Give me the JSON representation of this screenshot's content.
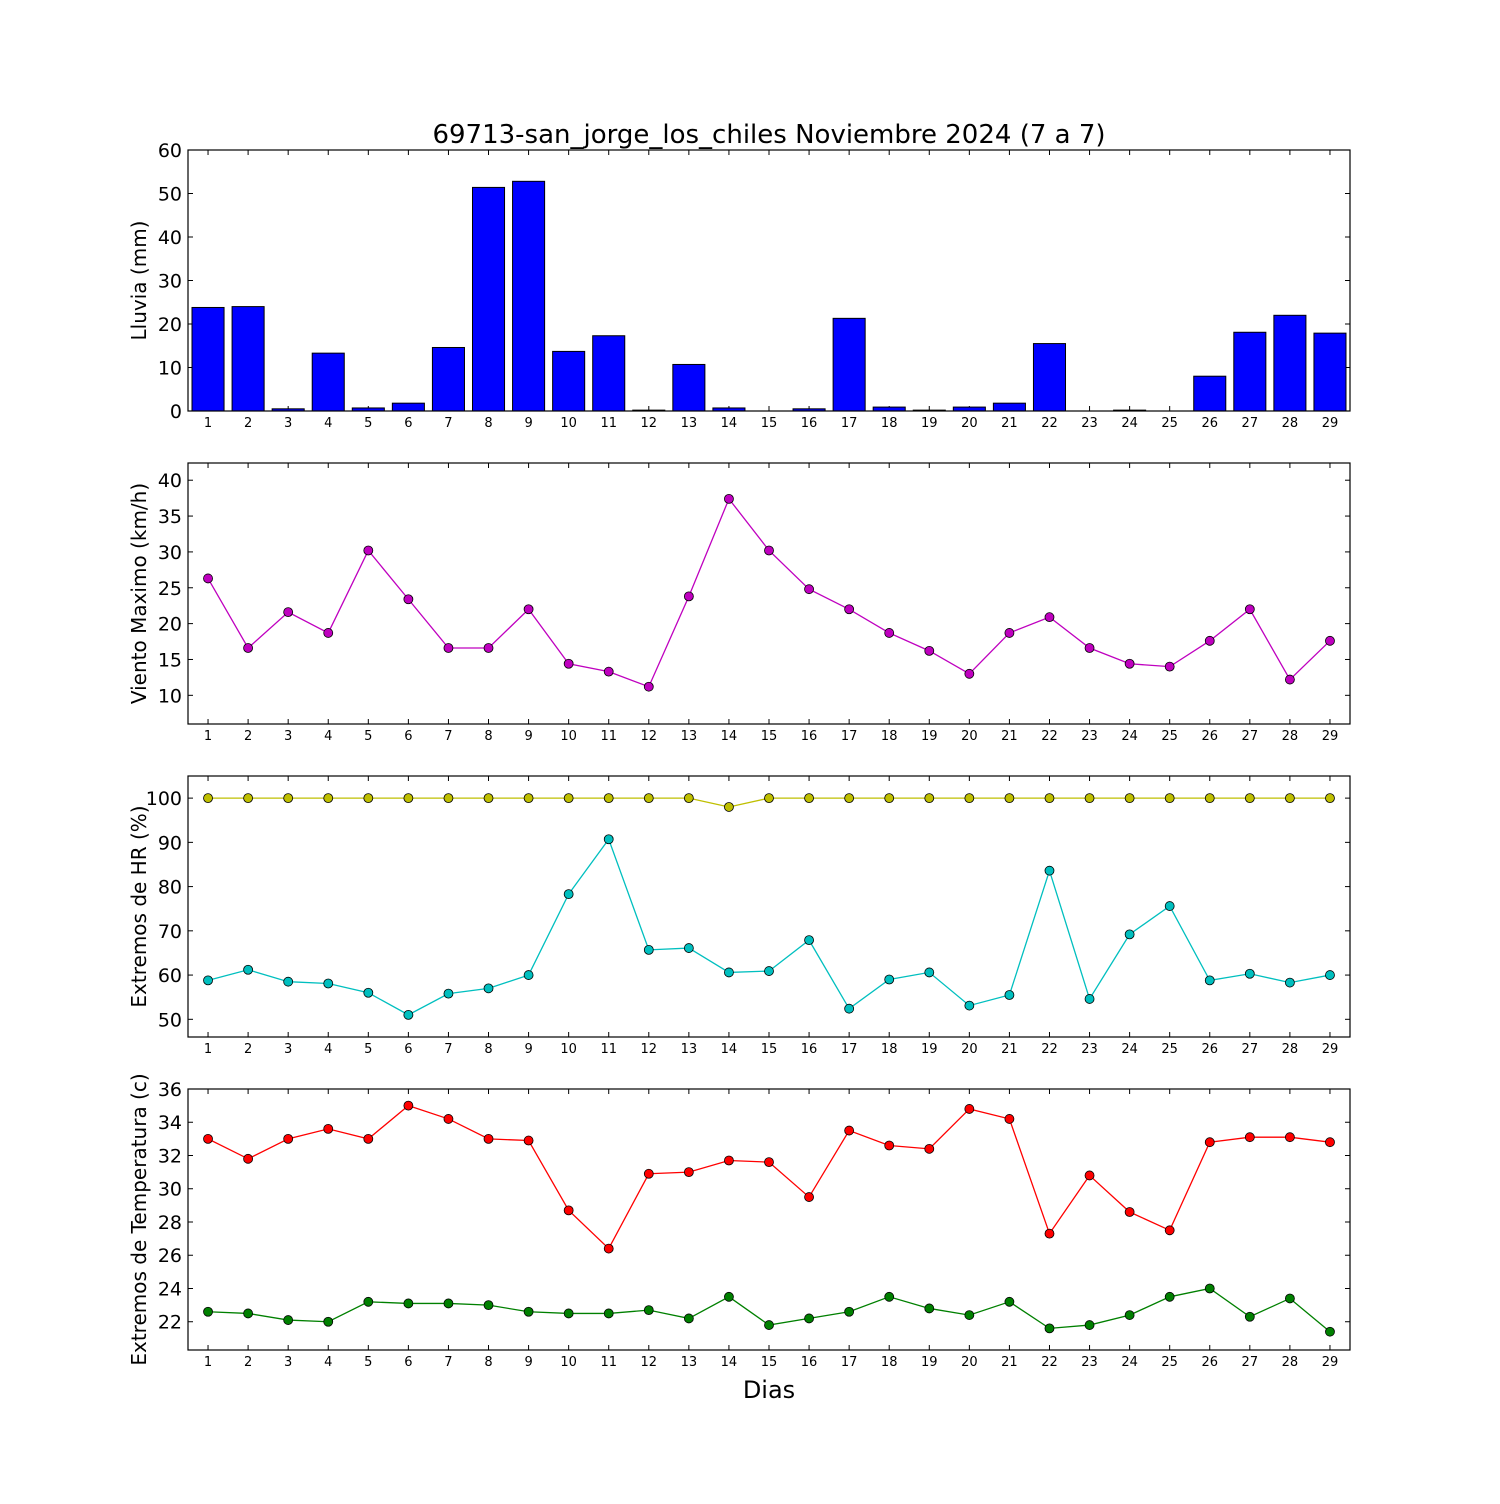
{
  "title": "69713-san_jorge_los_chiles Noviembre 2024  (7 a 7)",
  "xlabel": "Dias",
  "chart_data": [
    {
      "type": "bar",
      "ylabel": "Lluvia (mm)",
      "ylim": [
        0,
        60
      ],
      "yticks": [
        0,
        10,
        20,
        30,
        40,
        50,
        60
      ],
      "categories": [
        "1",
        "2",
        "3",
        "4",
        "5",
        "6",
        "7",
        "8",
        "9",
        "10",
        "11",
        "12",
        "13",
        "14",
        "15",
        "16",
        "17",
        "18",
        "19",
        "20",
        "21",
        "22",
        "23",
        "24",
        "25",
        "26",
        "27",
        "28",
        "29"
      ],
      "series": [
        {
          "color": "#0000ff",
          "values": [
            23.8,
            24.0,
            0.5,
            13.3,
            0.7,
            1.8,
            14.6,
            51.4,
            52.8,
            13.7,
            17.3,
            0.2,
            10.7,
            0.7,
            0.0,
            0.5,
            21.3,
            0.9,
            0.2,
            0.9,
            1.8,
            15.5,
            0.0,
            0.2,
            0.0,
            8.0,
            18.1,
            22.0,
            17.9
          ]
        }
      ]
    },
    {
      "type": "line",
      "ylabel": "Viento Maximo (km/h)",
      "ylim": [
        6,
        42.4
      ],
      "yticks": [
        10,
        15,
        20,
        25,
        30,
        35,
        40
      ],
      "categories": [
        "1",
        "2",
        "3",
        "4",
        "5",
        "6",
        "7",
        "8",
        "9",
        "10",
        "11",
        "12",
        "13",
        "14",
        "15",
        "16",
        "17",
        "18",
        "19",
        "20",
        "21",
        "22",
        "23",
        "24",
        "25",
        "26",
        "27",
        "28",
        "29"
      ],
      "series": [
        {
          "color": "#bf00bf",
          "values": [
            26.3,
            16.6,
            21.6,
            18.7,
            30.2,
            23.4,
            16.6,
            16.6,
            22.0,
            14.4,
            13.3,
            11.2,
            23.8,
            37.4,
            30.2,
            24.8,
            22.0,
            18.7,
            16.2,
            13.0,
            18.7,
            20.9,
            16.6,
            14.4,
            14.0,
            17.6,
            22.0,
            12.2,
            17.6
          ]
        }
      ]
    },
    {
      "type": "line",
      "ylabel": "Extremos de HR (%)",
      "ylim": [
        46,
        105
      ],
      "yticks": [
        50,
        60,
        70,
        80,
        90,
        100
      ],
      "categories": [
        "1",
        "2",
        "3",
        "4",
        "5",
        "6",
        "7",
        "8",
        "9",
        "10",
        "11",
        "12",
        "13",
        "14",
        "15",
        "16",
        "17",
        "18",
        "19",
        "20",
        "21",
        "22",
        "23",
        "24",
        "25",
        "26",
        "27",
        "28",
        "29"
      ],
      "series": [
        {
          "color": "#bfbf00",
          "values": [
            100,
            100,
            100,
            100,
            100,
            100,
            100,
            100,
            100,
            100,
            100,
            100,
            100,
            98,
            100,
            100,
            100,
            100,
            100,
            100,
            100,
            100,
            100,
            100,
            100,
            100,
            100,
            100,
            100
          ]
        },
        {
          "color": "#00bfbf",
          "values": [
            58.8,
            61.2,
            58.5,
            58.1,
            56.0,
            51.0,
            55.8,
            57.0,
            60.0,
            78.3,
            90.7,
            65.7,
            66.1,
            60.6,
            60.9,
            67.9,
            52.4,
            59.0,
            60.6,
            53.1,
            55.5,
            83.6,
            54.6,
            69.2,
            75.6,
            58.8,
            60.3,
            58.3,
            60.0
          ]
        }
      ]
    },
    {
      "type": "line",
      "ylabel": "Extremos de Temperatura (c)",
      "ylim": [
        20.3,
        36
      ],
      "yticks": [
        22,
        24,
        26,
        28,
        30,
        32,
        34,
        36
      ],
      "categories": [
        "1",
        "2",
        "3",
        "4",
        "5",
        "6",
        "7",
        "8",
        "9",
        "10",
        "11",
        "12",
        "13",
        "14",
        "15",
        "16",
        "17",
        "18",
        "19",
        "20",
        "21",
        "22",
        "23",
        "24",
        "25",
        "26",
        "27",
        "28",
        "29"
      ],
      "series": [
        {
          "color": "#ff0000",
          "values": [
            33.0,
            31.8,
            33.0,
            33.6,
            33.0,
            35.0,
            34.2,
            33.0,
            32.9,
            28.7,
            26.4,
            30.9,
            31.0,
            31.7,
            31.6,
            29.5,
            33.5,
            32.6,
            32.4,
            34.8,
            34.2,
            27.3,
            30.8,
            28.6,
            27.5,
            32.8,
            33.1,
            33.1,
            32.8
          ]
        },
        {
          "color": "#008000",
          "values": [
            22.6,
            22.5,
            22.1,
            22.0,
            23.2,
            23.1,
            23.1,
            23.0,
            22.6,
            22.5,
            22.5,
            22.7,
            22.2,
            23.5,
            21.8,
            22.2,
            22.6,
            23.5,
            22.8,
            22.4,
            23.2,
            21.6,
            21.8,
            22.4,
            23.5,
            24.0,
            22.3,
            23.4,
            21.4
          ]
        }
      ]
    }
  ]
}
